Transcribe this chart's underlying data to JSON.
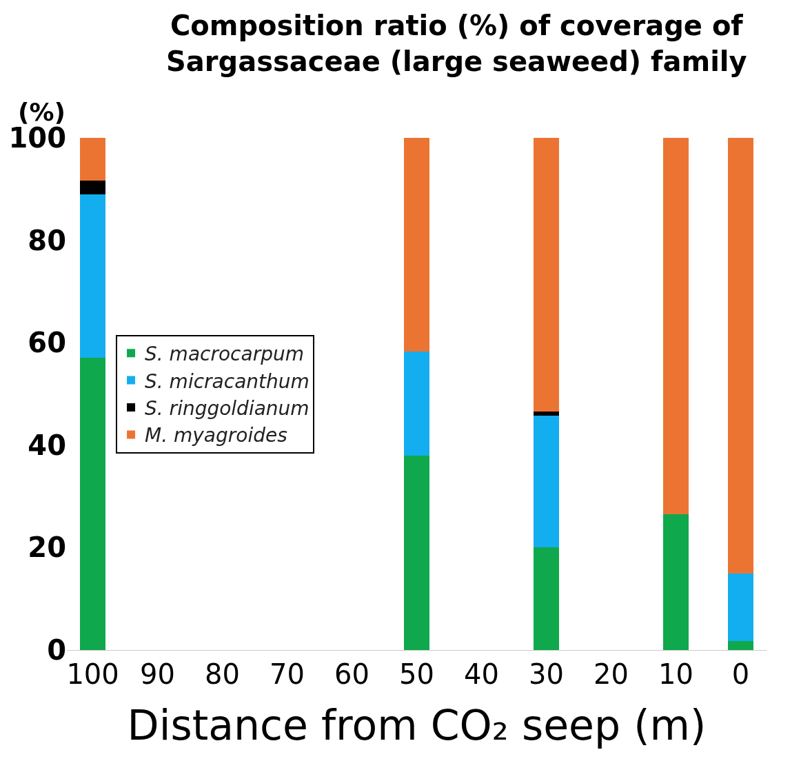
{
  "chart_data": {
    "type": "bar",
    "stacked": true,
    "title": "Composition ratio (%) of coverage of\nSargassaceae (large seaweed) family",
    "ylabel": "(%)",
    "xlabel": "Distance from CO₂ seep (m)",
    "x": [
      100,
      50,
      30,
      10,
      0
    ],
    "series": [
      {
        "name": "S. macrocarpum",
        "color": "#0fa84c",
        "values": [
          57.1,
          37.9,
          20.1,
          26.5,
          1.8
        ]
      },
      {
        "name": "S. micracanthum",
        "color": "#13aeef",
        "values": [
          31.9,
          20.4,
          25.7,
          0,
          13.1
        ]
      },
      {
        "name": "S. ringgoldianum",
        "color": "#000000",
        "values": [
          2.7,
          0,
          0.8,
          0,
          0
        ]
      },
      {
        "name": "M. myagroides",
        "color": "#ec7433",
        "values": [
          8.3,
          41.7,
          53.4,
          73.5,
          85.1
        ]
      }
    ],
    "xlim": [
      104,
      -4
    ],
    "xticks": [
      100,
      90,
      80,
      70,
      60,
      50,
      40,
      30,
      20,
      10,
      0
    ],
    "ylim": [
      0,
      100
    ],
    "yticks": [
      0,
      20,
      40,
      60,
      80,
      100
    ],
    "legend": "left"
  }
}
